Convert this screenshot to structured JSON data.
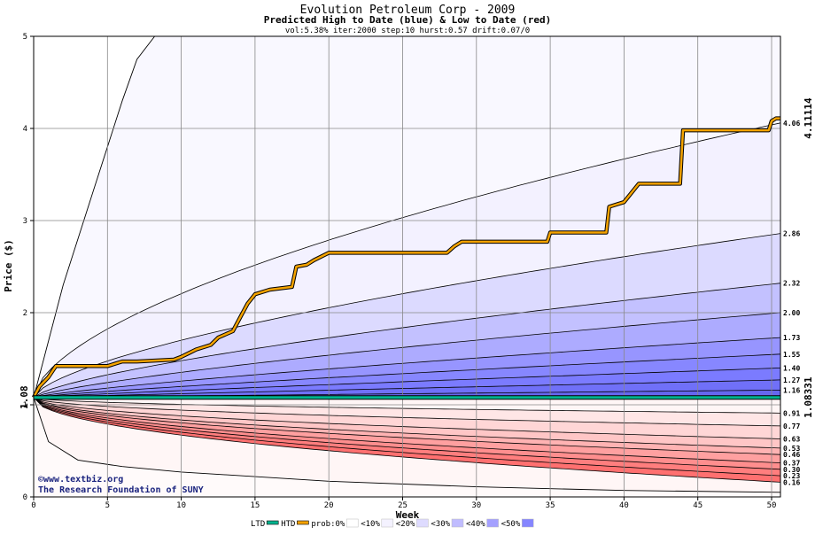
{
  "chart_data": {
    "type": "area",
    "title": "Evolution Petroleum Corp - 2009",
    "subtitle": "Predicted High to Date (blue) &  Low to Date (red)",
    "params": "vol:5.38% iter:2000 step:10 hurst:0.57 drift:0.07/0",
    "xlabel": "Week",
    "ylabel": "Price ($)",
    "xlim": [
      0,
      50.6
    ],
    "ylim": [
      0,
      5
    ],
    "x_ticks": [
      0,
      5,
      10,
      15,
      20,
      25,
      30,
      35,
      40,
      45,
      50
    ],
    "y_ticks": [
      0,
      1,
      2,
      3,
      4,
      5
    ],
    "grid": true,
    "start_price": 1.08,
    "start_price_label": "1.08",
    "actual_high_label": "4.11114",
    "actual_low_label": "1.08331",
    "credit_lines": [
      "©www.textbiz.org",
      "The Research Foundation of SUNY"
    ],
    "legend": {
      "placement": "bottom",
      "items": [
        {
          "label": "LTD",
          "color": "#00b38f",
          "kind": "line"
        },
        {
          "label": "HTD",
          "color": "#f4a300",
          "kind": "line"
        },
        {
          "label": "prob:0%",
          "color": "#ffffff",
          "kind": "swatch"
        },
        {
          "label": "<10%",
          "color": "#f4f2ff",
          "kind": "swatch"
        },
        {
          "label": "<20%",
          "color": "#dedbff",
          "kind": "swatch"
        },
        {
          "label": "<30%",
          "color": "#c0bcff",
          "kind": "swatch"
        },
        {
          "label": "<40%",
          "color": "#a4a0ff",
          "kind": "swatch"
        },
        {
          "label": "<50%",
          "color": "#8585ff",
          "kind": "swatch"
        }
      ]
    },
    "high_band_labels": [
      "4.06",
      "2.86",
      "2.32",
      "2.00",
      "1.73",
      "1.55",
      "1.40",
      "1.27",
      "1.16"
    ],
    "low_band_labels": [
      "0.91",
      "0.77",
      "0.63",
      "0.53",
      "0.46",
      "0.37",
      "0.30",
      "0.23",
      "0.16"
    ],
    "high_band_colors": [
      "#ffffff",
      "#f3f1ff",
      "#dcdaff",
      "#c3c1ff",
      "#adabff",
      "#9795ff",
      "#8787ff",
      "#7b7bff",
      "#7070f8",
      "#6666f0"
    ],
    "low_band_colors": [
      "#fff6f6",
      "#ffe6e6",
      "#ffd6d6",
      "#ffc6c6",
      "#ffb3b3",
      "#ffa0a0",
      "#ff8e8e",
      "#ff7e7e",
      "#ff7070"
    ],
    "high_bands_final": [
      4.06,
      2.86,
      2.32,
      2.0,
      1.73,
      1.55,
      1.4,
      1.27,
      1.16
    ],
    "low_bands_final": [
      0.91,
      0.77,
      0.63,
      0.53,
      0.46,
      0.37,
      0.3,
      0.23,
      0.16
    ],
    "extreme_high_curve": [
      [
        0,
        1.08
      ],
      [
        2,
        2.3
      ],
      [
        4,
        3.3
      ],
      [
        5,
        3.8
      ],
      [
        6,
        4.3
      ],
      [
        7,
        4.75
      ],
      [
        8.2,
        5.0
      ]
    ],
    "extreme_low_curve": [
      [
        0,
        1.08
      ],
      [
        1,
        0.6
      ],
      [
        3,
        0.4
      ],
      [
        6,
        0.33
      ],
      [
        10,
        0.27
      ],
      [
        20,
        0.17
      ],
      [
        30,
        0.11
      ],
      [
        40,
        0.07
      ],
      [
        50.6,
        0.05
      ]
    ],
    "series": [
      {
        "name": "HTD",
        "color": "#f4a300",
        "points": [
          [
            0,
            1.08
          ],
          [
            0.4,
            1.2
          ],
          [
            1,
            1.3
          ],
          [
            1.5,
            1.42
          ],
          [
            2,
            1.42
          ],
          [
            5,
            1.42
          ],
          [
            6,
            1.47
          ],
          [
            7,
            1.47
          ],
          [
            9.5,
            1.49
          ],
          [
            10,
            1.52
          ],
          [
            10.5,
            1.56
          ],
          [
            11,
            1.6
          ],
          [
            12,
            1.65
          ],
          [
            12.5,
            1.73
          ],
          [
            13.5,
            1.8
          ],
          [
            14,
            1.95
          ],
          [
            14.5,
            2.1
          ],
          [
            15,
            2.2
          ],
          [
            16,
            2.25
          ],
          [
            17.5,
            2.28
          ],
          [
            17.8,
            2.5
          ],
          [
            18.5,
            2.52
          ],
          [
            19,
            2.57
          ],
          [
            20,
            2.65
          ],
          [
            28,
            2.65
          ],
          [
            28.5,
            2.72
          ],
          [
            29,
            2.77
          ],
          [
            34.8,
            2.77
          ],
          [
            35,
            2.87
          ],
          [
            38.8,
            2.87
          ],
          [
            39,
            3.15
          ],
          [
            40,
            3.2
          ],
          [
            41,
            3.4
          ],
          [
            43.8,
            3.4
          ],
          [
            44,
            3.98
          ],
          [
            49.8,
            3.98
          ],
          [
            50,
            4.08
          ],
          [
            50.3,
            4.11
          ],
          [
            50.6,
            4.11
          ]
        ]
      },
      {
        "name": "LTD",
        "color": "#00b38f",
        "points": [
          [
            0,
            1.08
          ],
          [
            50.6,
            1.08
          ]
        ]
      }
    ]
  }
}
